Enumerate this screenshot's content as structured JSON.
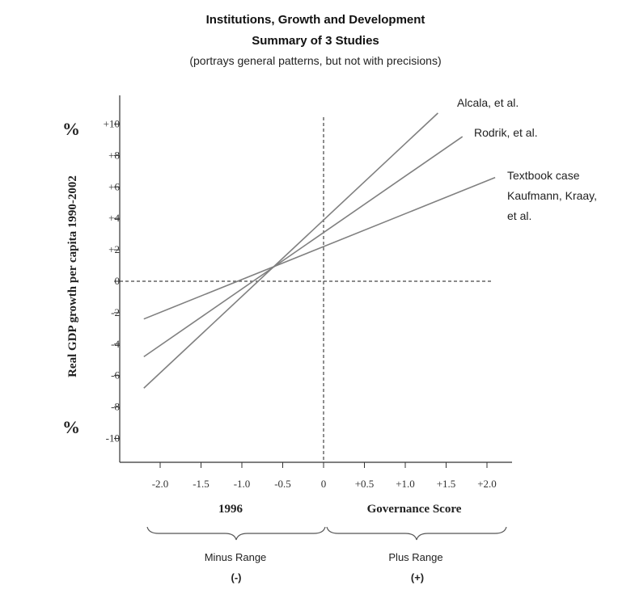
{
  "chart_data": {
    "type": "line",
    "title": "Institutions, Growth and Development",
    "subtitle": "Summary of 3 Studies",
    "note": "(portrays general patterns, but not with precisions)",
    "ylabel": "Real GDP growth per capita 1990-2002",
    "y_unit_top": "%",
    "y_unit_bottom": "%",
    "xlim": [
      -2.3,
      2.1
    ],
    "ylim": [
      -11,
      10.8
    ],
    "x_ticks": [
      -2.0,
      -1.5,
      -1.0,
      -0.5,
      0,
      0.5,
      1.0,
      1.5,
      2.0
    ],
    "x_tick_labels": [
      "-2.0",
      "-1.5",
      "-1.0",
      "-0.5",
      "0",
      "+0.5",
      "+1.0",
      "+1.5",
      "+2.0"
    ],
    "y_ticks": [
      10,
      8,
      6,
      4,
      2,
      0,
      -2,
      -4,
      -6,
      -8,
      -10
    ],
    "y_tick_labels": [
      "+10",
      "+8",
      "+6",
      "+4",
      "+2",
      "0",
      "-2",
      "-4",
      "-6",
      "-8",
      "-10"
    ],
    "x_label_left": "1996",
    "x_label_right": "Governance Score",
    "ranges": [
      {
        "label": "Minus Range",
        "sign": "(-)"
      },
      {
        "label": "Plus Range",
        "sign": "(+)"
      }
    ],
    "series": [
      {
        "name": "Alcala, et al.",
        "x": [
          -2.2,
          1.4
        ],
        "y": [
          -6.8,
          10.7
        ]
      },
      {
        "name": "Rodrik, et al.",
        "x": [
          -2.2,
          1.7
        ],
        "y": [
          -4.8,
          9.2
        ]
      },
      {
        "name": "Textbook case",
        "name_lines": [
          "Textbook case",
          "Kaufmann, Kraay,",
          "et al."
        ],
        "x": [
          -2.2,
          2.1
        ],
        "y": [
          -2.4,
          6.6
        ]
      }
    ],
    "colors": {
      "line": "#808080",
      "axis": "#333333",
      "dash": "#444444"
    }
  }
}
